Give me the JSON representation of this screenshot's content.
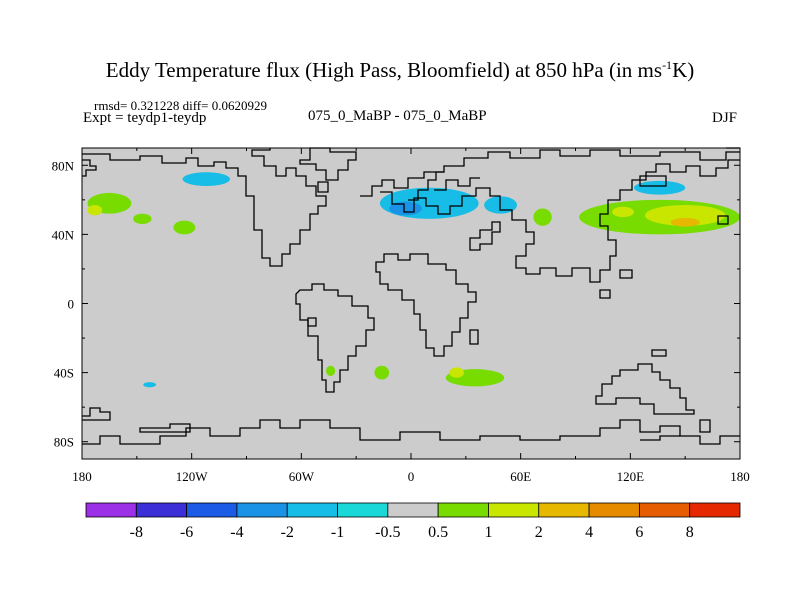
{
  "chart_data": {
    "type": "heatmap",
    "title_main": "Eddy Temperature flux (High Pass, Bloomfield) at 850 hPa (in ms",
    "title_sup": "-1",
    "title_end": "K)",
    "stats": "rmsd= 0.321228 diff= 0.0620929",
    "expt": "Expt = teydp1-teydp",
    "center_label": "075_0_MaBP - 075_0_MaBP",
    "season": "DJF",
    "xlim": [
      -180,
      180
    ],
    "ylim": [
      -90,
      90
    ],
    "x_ticks": [
      {
        "value": -180,
        "label": "180"
      },
      {
        "value": -120,
        "label": "120W"
      },
      {
        "value": -60,
        "label": "60W"
      },
      {
        "value": 0,
        "label": "0"
      },
      {
        "value": 60,
        "label": "60E"
      },
      {
        "value": 120,
        "label": "120E"
      },
      {
        "value": 180,
        "label": "180"
      }
    ],
    "y_ticks": [
      {
        "value": 80,
        "label": "80N"
      },
      {
        "value": 40,
        "label": "40N"
      },
      {
        "value": 0,
        "label": "0"
      },
      {
        "value": -40,
        "label": "40S"
      },
      {
        "value": -80,
        "label": "80S"
      }
    ],
    "colorbar": {
      "colors": [
        "#9b30e6",
        "#3c2fd8",
        "#1b5be6",
        "#1a92e6",
        "#17bde6",
        "#1ad8d8",
        "#cccccc",
        "#78dc00",
        "#c8e600",
        "#e6b800",
        "#e68a00",
        "#e65c00",
        "#e62800"
      ],
      "labels": [
        "-8",
        "-6",
        "-4",
        "-2",
        "-1",
        "-0.5",
        "0.5",
        "1",
        "2",
        "4",
        "6",
        "8"
      ]
    },
    "anomaly_regions": [
      {
        "lon": -165,
        "lat": 58,
        "rlon": 12,
        "rlat": 6,
        "level": "1"
      },
      {
        "lon": -173,
        "lat": 54,
        "rlon": 4,
        "rlat": 3,
        "level": "2"
      },
      {
        "lon": -124,
        "lat": 44,
        "rlon": 6,
        "rlat": 4,
        "level": "1"
      },
      {
        "lon": -147,
        "lat": 49,
        "rlon": 5,
        "rlat": 3,
        "level": "1"
      },
      {
        "lon": -112,
        "lat": 72,
        "rlon": 13,
        "rlat": 4,
        "level": "-1"
      },
      {
        "lon": 10,
        "lat": 58,
        "rlon": 27,
        "rlat": 9,
        "level": "-1"
      },
      {
        "lon": -3,
        "lat": 55,
        "rlon": 9,
        "rlat": 4,
        "level": "-2"
      },
      {
        "lon": 49,
        "lat": 57,
        "rlon": 9,
        "rlat": 5,
        "level": "-1"
      },
      {
        "lon": 72,
        "lat": 50,
        "rlon": 5,
        "rlat": 5,
        "level": "1"
      },
      {
        "lon": 136,
        "lat": 50,
        "rlon": 44,
        "rlat": 10,
        "level": "1"
      },
      {
        "lon": 150,
        "lat": 51,
        "rlon": 22,
        "rlat": 6,
        "level": "2"
      },
      {
        "lon": 150,
        "lat": 47,
        "rlon": 8,
        "rlat": 2.5,
        "level": "4"
      },
      {
        "lon": 116,
        "lat": 53,
        "rlon": 6,
        "rlat": 3,
        "level": "2"
      },
      {
        "lon": 136,
        "lat": 67,
        "rlon": 14,
        "rlat": 4,
        "level": "-1"
      },
      {
        "lon": 35,
        "lat": -43,
        "rlon": 16,
        "rlat": 5,
        "level": "1"
      },
      {
        "lon": 25,
        "lat": -40,
        "rlon": 4,
        "rlat": 3,
        "level": "2"
      },
      {
        "lon": -16,
        "lat": -40,
        "rlon": 4,
        "rlat": 4,
        "level": "1"
      },
      {
        "lon": -44,
        "lat": -39,
        "rlon": 2.5,
        "rlat": 3,
        "level": "1"
      },
      {
        "lon": -143,
        "lat": -47,
        "rlon": 3.5,
        "rlat": 1.5,
        "level": "-1"
      }
    ]
  }
}
